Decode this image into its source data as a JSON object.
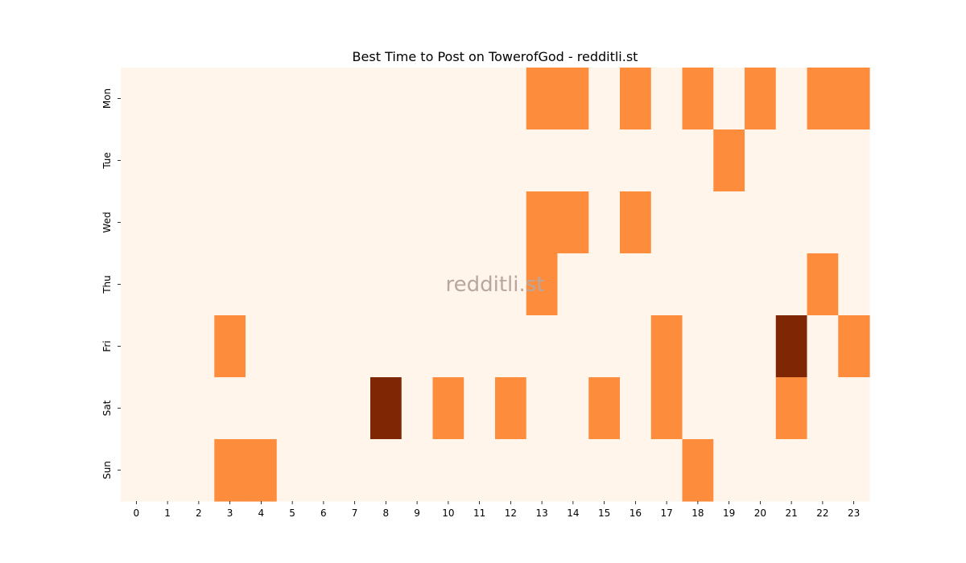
{
  "chart_data": {
    "type": "heatmap",
    "title": "Best Time to Post on TowerofGod - redditli.st",
    "watermark": "redditli.st",
    "xlabel": "",
    "ylabel": "",
    "x_labels": [
      "0",
      "1",
      "2",
      "3",
      "4",
      "5",
      "6",
      "7",
      "8",
      "9",
      "10",
      "11",
      "12",
      "13",
      "14",
      "15",
      "16",
      "17",
      "18",
      "19",
      "20",
      "21",
      "22",
      "23"
    ],
    "y_labels": [
      "Mon",
      "Tue",
      "Wed",
      "Thu",
      "Fri",
      "Sat",
      "Sun"
    ],
    "values": [
      [
        0,
        0,
        0,
        0,
        0,
        0,
        0,
        0,
        0,
        0,
        0,
        0,
        0,
        1,
        1,
        0,
        1,
        0,
        1,
        0,
        1,
        0,
        1,
        1
      ],
      [
        0,
        0,
        0,
        0,
        0,
        0,
        0,
        0,
        0,
        0,
        0,
        0,
        0,
        0,
        0,
        0,
        0,
        0,
        0,
        1,
        0,
        0,
        0,
        0
      ],
      [
        0,
        0,
        0,
        0,
        0,
        0,
        0,
        0,
        0,
        0,
        0,
        0,
        0,
        1,
        1,
        0,
        1,
        0,
        0,
        0,
        0,
        0,
        0,
        0
      ],
      [
        0,
        0,
        0,
        0,
        0,
        0,
        0,
        0,
        0,
        0,
        0,
        0,
        0,
        1,
        0,
        0,
        0,
        0,
        0,
        0,
        0,
        0,
        1,
        0
      ],
      [
        0,
        0,
        0,
        1,
        0,
        0,
        0,
        0,
        0,
        0,
        0,
        0,
        0,
        0,
        0,
        0,
        0,
        1,
        0,
        0,
        0,
        2,
        0,
        1
      ],
      [
        0,
        0,
        0,
        0,
        0,
        0,
        0,
        0,
        2,
        0,
        1,
        0,
        1,
        0,
        0,
        1,
        0,
        1,
        0,
        0,
        0,
        1,
        0,
        0
      ],
      [
        0,
        0,
        0,
        1,
        1,
        0,
        0,
        0,
        0,
        0,
        0,
        0,
        0,
        0,
        0,
        0,
        0,
        0,
        1,
        0,
        0,
        0,
        0,
        0
      ]
    ],
    "colormap": {
      "0": "#fff5eb",
      "1": "#fd8d3c",
      "2": "#7f2704"
    },
    "grid": false,
    "legend": "none"
  }
}
